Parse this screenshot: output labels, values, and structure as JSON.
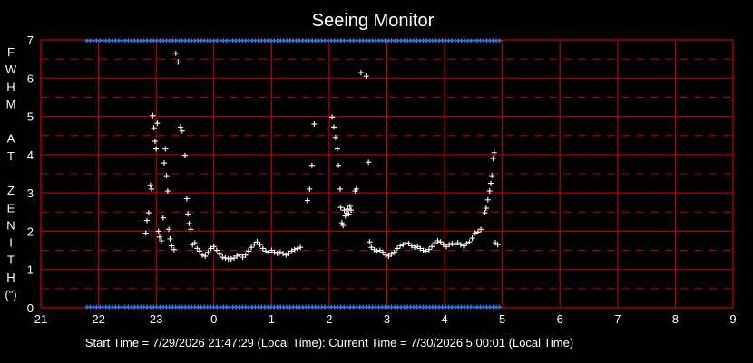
{
  "chart_data": {
    "type": "scatter",
    "title": "Seeing Monitor",
    "ylabel_letters": [
      "F",
      "W",
      "H",
      "M",
      "",
      "A",
      "T",
      "",
      "Z",
      "E",
      "N",
      "I",
      "T",
      "H",
      "(\")"
    ],
    "xlim": [
      21,
      33
    ],
    "ylim": [
      0,
      7
    ],
    "x_tick_labels": [
      "21",
      "22",
      "23",
      "0",
      "1",
      "2",
      "3",
      "4",
      "5",
      "6",
      "7",
      "8",
      "9"
    ],
    "y_tick_labels": [
      "0",
      "1",
      "2",
      "3",
      "4",
      "5",
      "6",
      "7"
    ],
    "grid": true,
    "footer": "Start Time = 7/29/2026  21:47:29 (Local Time):  Current Time = 7/30/2026  5:00:01 (Local Time)",
    "colors": {
      "background": "#000000",
      "grid": "#cc0000",
      "points": "#ffffff",
      "bands": "#2288ff"
    },
    "series": [
      {
        "marker": "plus",
        "points": [
          [
            22.82,
            1.95
          ],
          [
            22.84,
            2.28
          ],
          [
            22.87,
            2.48
          ],
          [
            22.9,
            3.2
          ],
          [
            22.92,
            3.1
          ],
          [
            22.94,
            5.02
          ],
          [
            22.96,
            4.7
          ],
          [
            22.98,
            4.35
          ],
          [
            23.0,
            4.15
          ],
          [
            23.02,
            4.82
          ],
          [
            23.04,
            2.0
          ],
          [
            23.06,
            1.85
          ],
          [
            23.09,
            1.75
          ],
          [
            23.12,
            2.35
          ],
          [
            23.14,
            3.78
          ],
          [
            23.16,
            4.15
          ],
          [
            23.18,
            3.45
          ],
          [
            23.2,
            3.05
          ],
          [
            23.22,
            2.05
          ],
          [
            23.24,
            1.8
          ],
          [
            23.27,
            1.62
          ],
          [
            23.31,
            1.52
          ],
          [
            23.34,
            6.65
          ],
          [
            23.38,
            6.42
          ],
          [
            23.42,
            4.72
          ],
          [
            23.45,
            4.62
          ],
          [
            23.5,
            3.98
          ],
          [
            23.53,
            2.85
          ],
          [
            23.55,
            2.45
          ],
          [
            23.57,
            2.2
          ],
          [
            23.6,
            2.05
          ],
          [
            23.63,
            1.65
          ],
          [
            23.67,
            1.7
          ],
          [
            23.71,
            1.55
          ],
          [
            23.75,
            1.48
          ],
          [
            23.8,
            1.38
          ],
          [
            23.85,
            1.35
          ],
          [
            23.9,
            1.45
          ],
          [
            23.95,
            1.55
          ],
          [
            24.0,
            1.6
          ],
          [
            24.05,
            1.5
          ],
          [
            24.1,
            1.4
          ],
          [
            24.15,
            1.32
          ],
          [
            24.2,
            1.3
          ],
          [
            24.25,
            1.28
          ],
          [
            24.3,
            1.28
          ],
          [
            24.35,
            1.3
          ],
          [
            24.4,
            1.35
          ],
          [
            24.45,
            1.38
          ],
          [
            24.5,
            1.32
          ],
          [
            24.55,
            1.38
          ],
          [
            24.6,
            1.48
          ],
          [
            24.65,
            1.58
          ],
          [
            24.7,
            1.66
          ],
          [
            24.75,
            1.72
          ],
          [
            24.8,
            1.65
          ],
          [
            24.85,
            1.55
          ],
          [
            24.9,
            1.48
          ],
          [
            24.95,
            1.45
          ],
          [
            25.0,
            1.5
          ],
          [
            25.05,
            1.45
          ],
          [
            25.1,
            1.42
          ],
          [
            25.15,
            1.45
          ],
          [
            25.2,
            1.42
          ],
          [
            25.25,
            1.38
          ],
          [
            25.3,
            1.42
          ],
          [
            25.35,
            1.48
          ],
          [
            25.4,
            1.52
          ],
          [
            25.45,
            1.55
          ],
          [
            25.5,
            1.58
          ],
          [
            25.62,
            2.8
          ],
          [
            25.66,
            3.1
          ],
          [
            25.7,
            3.72
          ],
          [
            25.74,
            4.8
          ],
          [
            26.05,
            4.98
          ],
          [
            26.08,
            4.72
          ],
          [
            26.11,
            4.45
          ],
          [
            26.14,
            4.15
          ],
          [
            26.16,
            3.72
          ],
          [
            26.19,
            3.1
          ],
          [
            26.2,
            2.62
          ],
          [
            26.22,
            2.22
          ],
          [
            26.24,
            2.15
          ],
          [
            26.26,
            2.55
          ],
          [
            26.28,
            2.4
          ],
          [
            26.3,
            2.48
          ],
          [
            26.32,
            2.58
          ],
          [
            26.34,
            2.45
          ],
          [
            26.36,
            2.65
          ],
          [
            26.38,
            2.55
          ],
          [
            26.45,
            3.05
          ],
          [
            26.47,
            3.1
          ],
          [
            26.55,
            6.15
          ],
          [
            26.64,
            6.05
          ],
          [
            26.68,
            3.8
          ],
          [
            26.7,
            1.72
          ],
          [
            26.73,
            1.58
          ],
          [
            26.78,
            1.52
          ],
          [
            26.83,
            1.48
          ],
          [
            26.88,
            1.5
          ],
          [
            26.93,
            1.45
          ],
          [
            26.98,
            1.38
          ],
          [
            27.03,
            1.35
          ],
          [
            27.08,
            1.4
          ],
          [
            27.13,
            1.45
          ],
          [
            27.18,
            1.55
          ],
          [
            27.23,
            1.62
          ],
          [
            27.28,
            1.65
          ],
          [
            27.33,
            1.7
          ],
          [
            27.38,
            1.68
          ],
          [
            27.43,
            1.62
          ],
          [
            27.48,
            1.58
          ],
          [
            27.53,
            1.6
          ],
          [
            27.58,
            1.55
          ],
          [
            27.63,
            1.5
          ],
          [
            27.68,
            1.48
          ],
          [
            27.73,
            1.52
          ],
          [
            27.78,
            1.6
          ],
          [
            27.83,
            1.7
          ],
          [
            27.88,
            1.75
          ],
          [
            27.93,
            1.72
          ],
          [
            27.98,
            1.65
          ],
          [
            28.03,
            1.6
          ],
          [
            28.08,
            1.65
          ],
          [
            28.13,
            1.68
          ],
          [
            28.18,
            1.65
          ],
          [
            28.23,
            1.7
          ],
          [
            28.28,
            1.65
          ],
          [
            28.33,
            1.62
          ],
          [
            28.38,
            1.68
          ],
          [
            28.43,
            1.72
          ],
          [
            28.48,
            1.82
          ],
          [
            28.53,
            1.95
          ],
          [
            28.58,
            1.98
          ],
          [
            28.63,
            2.05
          ],
          [
            28.7,
            2.48
          ],
          [
            28.72,
            2.6
          ],
          [
            28.75,
            2.82
          ],
          [
            28.78,
            3.05
          ],
          [
            28.8,
            3.25
          ],
          [
            28.82,
            3.45
          ],
          [
            28.84,
            3.9
          ],
          [
            28.86,
            4.05
          ],
          [
            28.88,
            1.7
          ],
          [
            28.92,
            1.65
          ]
        ]
      }
    ],
    "bands": [
      {
        "y": 6.98,
        "x_start": 21.8,
        "x_end": 28.97,
        "marker": "plus"
      },
      {
        "y": 0.02,
        "x_start": 21.8,
        "x_end": 28.97,
        "marker": "plus"
      }
    ]
  }
}
